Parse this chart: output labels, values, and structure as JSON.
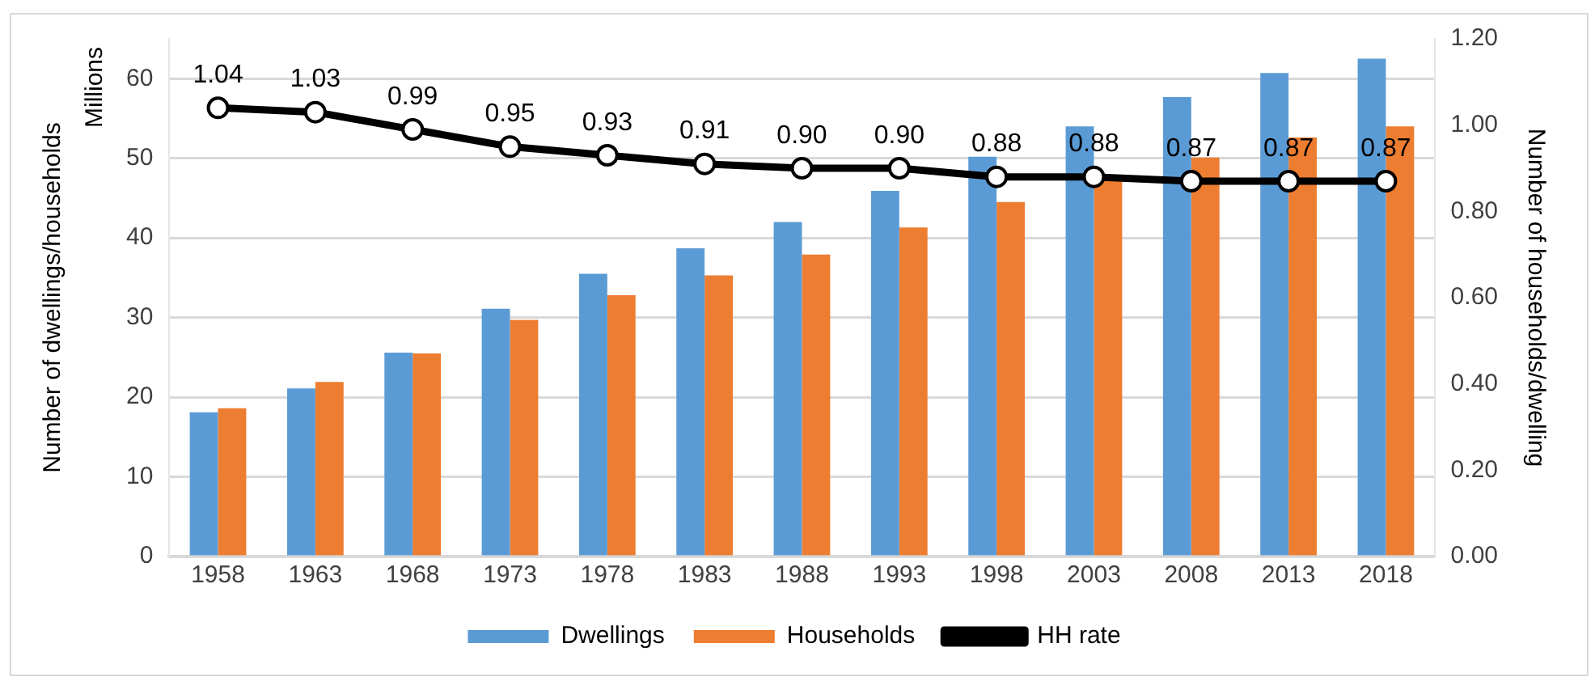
{
  "chart_data": {
    "type": "bar",
    "categories": [
      "1958",
      "1963",
      "1968",
      "1973",
      "1978",
      "1983",
      "1988",
      "1993",
      "1998",
      "2003",
      "2008",
      "2013",
      "2018"
    ],
    "ylabel": "Number of dwellings/households",
    "y2label": "Number of households/dwelling",
    "annotations": [
      "Millions"
    ],
    "ylim": [
      0,
      65
    ],
    "yticks": [
      0,
      10,
      20,
      30,
      40,
      50,
      60
    ],
    "y2lim": [
      0,
      1.2
    ],
    "y2ticks": [
      {
        "value": 0,
        "label": "0.00"
      },
      {
        "value": 0.2,
        "label": "0.20"
      },
      {
        "value": 0.4,
        "label": "0.40"
      },
      {
        "value": 0.6,
        "label": "0.60"
      },
      {
        "value": 0.8,
        "label": "0.80"
      },
      {
        "value": 1,
        "label": "1.00"
      },
      {
        "value": 1.2,
        "label": "1.20"
      }
    ],
    "grid": "y",
    "legend": "bottom",
    "series": [
      {
        "name": "Dwellings",
        "color": "#5b9bd5",
        "values": [
          18.1,
          21.1,
          25.6,
          31.1,
          35.5,
          38.7,
          42.0,
          45.9,
          50.2,
          54.0,
          57.7,
          60.7,
          62.5
        ]
      },
      {
        "name": "Households",
        "color": "#ed7d31",
        "values": [
          18.6,
          21.9,
          25.5,
          29.7,
          32.8,
          35.3,
          37.9,
          41.3,
          44.5,
          47.5,
          50.1,
          52.6,
          54.0
        ]
      },
      {
        "name": "HH rate",
        "type": "line",
        "axis": "y2",
        "color": "#000000",
        "marker": "circle",
        "values": [
          1.04,
          1.03,
          0.99,
          0.95,
          0.93,
          0.91,
          0.9,
          0.9,
          0.88,
          0.88,
          0.87,
          0.87,
          0.87
        ],
        "value_labels": [
          "1.04",
          "1.03",
          "0.99",
          "0.95",
          "0.93",
          "0.91",
          "0.90",
          "0.90",
          "0.88",
          "0.88",
          "0.87",
          "0.87",
          "0.87"
        ]
      }
    ]
  }
}
